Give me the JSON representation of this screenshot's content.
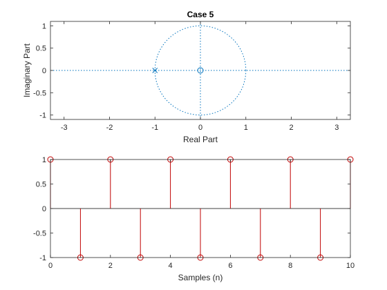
{
  "chart_data": [
    {
      "type": "scatter",
      "subtype": "pole-zero",
      "title": "Case 5",
      "xlabel": "Real Part",
      "ylabel": "Imaginary Part",
      "xlim": [
        -3.3,
        3.3
      ],
      "ylim": [
        -1.1,
        1.1
      ],
      "xticks": [
        -3,
        -2,
        -1,
        0,
        1,
        2,
        3
      ],
      "yticks": [
        -1,
        -0.5,
        0,
        0.5,
        1
      ],
      "unit_circle": true,
      "zeros": [
        {
          "re": 0,
          "im": 0
        }
      ],
      "poles": [
        {
          "re": -1,
          "im": 0
        }
      ],
      "color": "#0072BD"
    },
    {
      "type": "stem",
      "xlabel": "Samples (n)",
      "ylabel": "",
      "xlim": [
        0,
        10
      ],
      "ylim": [
        -1,
        1
      ],
      "xticks": [
        0,
        2,
        4,
        6,
        8,
        10
      ],
      "yticks": [
        -1,
        -0.5,
        0,
        0.5,
        1
      ],
      "x": [
        0,
        1,
        2,
        3,
        4,
        5,
        6,
        7,
        8,
        9,
        10
      ],
      "values": [
        1,
        -1,
        1,
        -1,
        1,
        -1,
        1,
        -1,
        1,
        -1,
        1
      ],
      "color": "#C00000"
    }
  ]
}
